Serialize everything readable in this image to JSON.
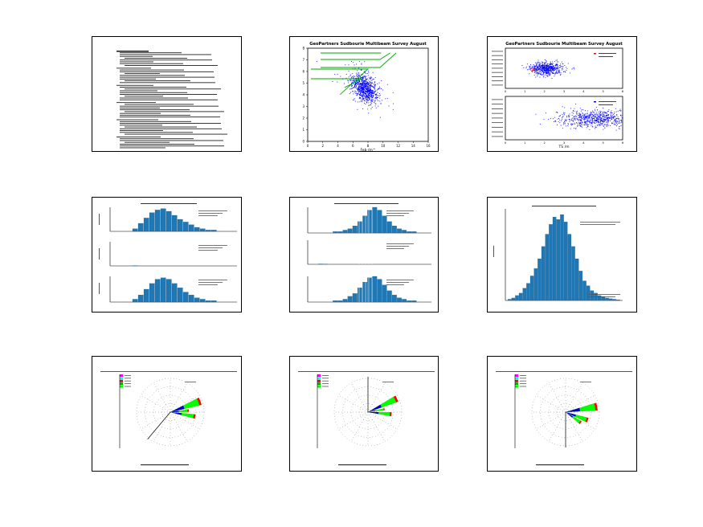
{
  "pages": [
    {
      "id": "p1",
      "type": "document",
      "name": "report-text-page",
      "line_count": 52
    },
    {
      "id": "p2",
      "type": "scatter",
      "name": "scatter-overview",
      "title": "GeoPartners Sudbourie Multibeam Survey August",
      "xlabel": "Feb /m^",
      "xlim": [
        0,
        16
      ],
      "ylim": [
        0,
        8
      ],
      "xticks": [
        "0",
        "2",
        "4",
        "6",
        "8",
        "10",
        "12",
        "14",
        "16"
      ],
      "yticks": [
        "0",
        "1",
        "2",
        "3",
        "4",
        "5",
        "6",
        "7",
        "8"
      ],
      "cluster": {
        "cx": 7.5,
        "cy": 4.6,
        "sx": 0.85,
        "sy": 0.55,
        "points": 900
      },
      "point_color": "#0000ff",
      "guide_color": "#00aa00"
    },
    {
      "id": "p3",
      "type": "scatter",
      "name": "scatter-two-panel",
      "title": "GeoPartners Sudbourie Multibeam Survey August",
      "xlabel": "TS /m",
      "xticks": [
        "0",
        "1",
        "2",
        "3",
        "4",
        "5",
        "6"
      ],
      "top_xlim": [
        0,
        6
      ],
      "bottom_xlim": [
        0,
        6
      ],
      "top_cluster": {
        "cx": 2.1,
        "cy": 0.5,
        "sx": 0.35,
        "sy": 0.08,
        "points": 600
      },
      "bottom_cluster": {
        "cx": 4.6,
        "cy": 0.5,
        "sx": 0.9,
        "sy": 0.1,
        "points": 700
      },
      "point_color": "#0000ff",
      "accent_color": "#ff0000"
    },
    {
      "id": "p4",
      "type": "bar",
      "name": "histogram-three-panel",
      "panels": [
        {
          "values": [
            2,
            6,
            10,
            14,
            16,
            17,
            15,
            12,
            9,
            7,
            5,
            3,
            2,
            1,
            1
          ]
        },
        {
          "values": [
            0.2,
            0,
            0,
            0,
            0,
            0,
            0,
            0,
            0,
            0,
            0,
            0,
            0,
            0,
            0
          ]
        },
        {
          "values": [
            2,
            5,
            9,
            13,
            16,
            17,
            16,
            13,
            10,
            7,
            5,
            3,
            2,
            1,
            1
          ]
        }
      ],
      "bar_color": "#1f77b4"
    },
    {
      "id": "p5",
      "type": "bar",
      "name": "histogram-mixed-panel",
      "panels": [
        {
          "values": [
            0,
            0,
            0,
            1,
            1,
            2,
            3,
            5,
            8,
            12,
            16,
            18,
            16,
            12,
            8,
            5,
            3,
            2,
            1,
            1,
            0,
            0
          ]
        },
        {
          "values": [
            0.3,
            0.1,
            0,
            0,
            0,
            0,
            0,
            0,
            0,
            0,
            0,
            0,
            0,
            0,
            0,
            0,
            0,
            0,
            0,
            0,
            0,
            0
          ]
        },
        {
          "values": [
            0,
            0,
            0,
            1,
            1,
            2,
            4,
            6,
            10,
            14,
            17,
            18,
            16,
            12,
            8,
            5,
            3,
            2,
            1,
            1,
            0,
            0
          ]
        }
      ],
      "bar_color": "#1f77b4"
    },
    {
      "id": "p6",
      "type": "bar",
      "name": "histogram-single",
      "values": [
        0.5,
        1,
        2,
        3,
        5,
        7,
        10,
        13,
        17,
        22,
        27,
        31,
        34,
        33,
        35,
        32,
        27,
        22,
        17,
        12,
        8,
        6,
        4,
        3,
        2,
        1.5,
        1,
        0.7,
        0.5,
        0.3
      ],
      "bar_color": "#1f77b4"
    },
    {
      "id": "p7",
      "type": "rose",
      "name": "rose-diagram-1",
      "petals": [
        {
          "angle": 70,
          "length": 0.95,
          "width": 14
        },
        {
          "angle": 100,
          "length": 0.75,
          "width": 10
        },
        {
          "angle": 85,
          "length": 0.55,
          "width": 8
        }
      ],
      "line_angle": 220,
      "colors": [
        "#ff00ff",
        "#00ffff",
        "#ff0000",
        "#00aa00",
        "#00ff00"
      ]
    },
    {
      "id": "p8",
      "type": "rose",
      "name": "rose-diagram-2",
      "petals": [
        {
          "angle": 65,
          "length": 0.95,
          "width": 12
        },
        {
          "angle": 95,
          "length": 0.7,
          "width": 10
        },
        {
          "angle": 80,
          "length": 0.5,
          "width": 6
        }
      ],
      "line_angle": 0,
      "colors": [
        "#ff00ff",
        "#00ffff",
        "#ff0000",
        "#00aa00",
        "#00ff00"
      ]
    },
    {
      "id": "p9",
      "type": "rose",
      "name": "rose-diagram-3",
      "petals": [
        {
          "angle": 80,
          "length": 0.95,
          "width": 14
        },
        {
          "angle": 110,
          "length": 0.7,
          "width": 12
        },
        {
          "angle": 125,
          "length": 0.55,
          "width": 10
        }
      ],
      "line_angle": 180,
      "colors": [
        "#ff00ff",
        "#00ffff",
        "#ff0000",
        "#00aa00",
        "#00ff00"
      ]
    }
  ]
}
